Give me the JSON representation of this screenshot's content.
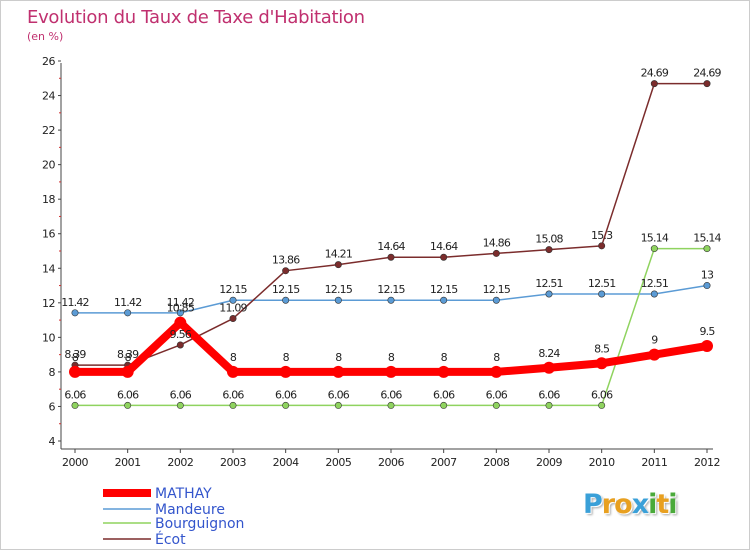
{
  "title": "Evolution du Taux de Taxe d'Habitation",
  "unit": "(en %)",
  "logo": {
    "letters": [
      "P",
      "r",
      "o",
      "x",
      "i",
      "t",
      "i"
    ],
    "colors": [
      "#3aa0d8",
      "#e8a020",
      "#e8a020",
      "#3aa0d8",
      "#4aaa3a",
      "#e8a020",
      "#4aaa3a"
    ]
  },
  "chart_data": {
    "type": "line",
    "x": [
      "2000",
      "2001",
      "2002",
      "2003",
      "2004",
      "2005",
      "2006",
      "2007",
      "2008",
      "2009",
      "2010",
      "2011",
      "2012"
    ],
    "ylim": [
      4,
      26
    ],
    "yticks": [
      4,
      6,
      8,
      10,
      12,
      14,
      16,
      18,
      20,
      22,
      24,
      26
    ],
    "grid": false,
    "legend": "bottom-left",
    "series": [
      {
        "name": "MATHAY",
        "color": "#ff0000",
        "values": [
          8,
          8,
          10.85,
          8,
          8,
          8,
          8,
          8,
          8,
          8.24,
          8.5,
          9,
          9.5
        ],
        "labels": [
          "8",
          "8",
          "10.85",
          "8",
          "8",
          "8",
          "8",
          "8",
          "8",
          "8.24",
          "8.5",
          "9",
          "9.5"
        ]
      },
      {
        "name": "Mandeure",
        "color": "#5b9bd5",
        "values": [
          11.42,
          11.42,
          11.42,
          12.15,
          12.15,
          12.15,
          12.15,
          12.15,
          12.15,
          12.51,
          12.51,
          12.51,
          13
        ],
        "labels": [
          "11.42",
          "11.42",
          "11.42",
          "12.15",
          "12.15",
          "12.15",
          "12.15",
          "12.15",
          "12.15",
          "12.51",
          "12.51",
          "12.51",
          "13"
        ]
      },
      {
        "name": "Bourguignon",
        "color": "#8fd35f",
        "values": [
          6.06,
          6.06,
          6.06,
          6.06,
          6.06,
          6.06,
          6.06,
          6.06,
          6.06,
          6.06,
          6.06,
          15.14,
          15.14
        ],
        "labels": [
          "6.06",
          "6.06",
          "6.06",
          "6.06",
          "6.06",
          "6.06",
          "6.06",
          "6.06",
          "6.06",
          "6.06",
          "6.06",
          "15.14",
          "15.14"
        ]
      },
      {
        "name": "Écot",
        "color": "#7b2c2c",
        "values": [
          8.39,
          8.39,
          9.56,
          11.09,
          13.86,
          14.21,
          14.64,
          14.64,
          14.86,
          15.08,
          15.3,
          24.69,
          24.69
        ],
        "labels": [
          "8.39",
          "8.39",
          "9.56",
          "11.09",
          "13.86",
          "14.21",
          "14.64",
          "14.64",
          "14.86",
          "15.08",
          "15.3",
          "24.69",
          "24.69"
        ]
      }
    ]
  }
}
